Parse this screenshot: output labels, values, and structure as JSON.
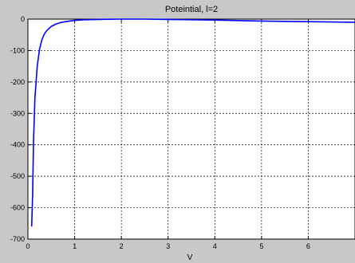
{
  "chart_data": {
    "type": "line",
    "title": "Poteintial, l=2",
    "xlabel": "V",
    "ylabel": "",
    "xlim": [
      0,
      7
    ],
    "ylim": [
      -700,
      0
    ],
    "xticks": [
      0,
      1,
      2,
      3,
      4,
      5,
      6
    ],
    "yticks": [
      0,
      -100,
      -200,
      -300,
      -400,
      -500,
      -600,
      -700
    ],
    "grid": true,
    "line_color": "#0000ff",
    "series": [
      {
        "x": [
          0.08,
          0.1,
          0.12,
          0.15,
          0.2,
          0.25,
          0.3,
          0.35,
          0.4,
          0.5,
          0.6,
          0.7,
          0.8,
          1.0,
          1.2,
          1.5,
          2.0,
          2.5,
          3.0,
          4.0,
          5.0,
          6.0,
          7.0
        ],
        "y": [
          -660,
          -560,
          -390,
          -250,
          -150,
          -95,
          -65,
          -48,
          -37,
          -23,
          -16,
          -11,
          -8,
          -4,
          -2,
          -1,
          0,
          0,
          -1,
          -3,
          -6,
          -8,
          -10
        ]
      }
    ]
  }
}
